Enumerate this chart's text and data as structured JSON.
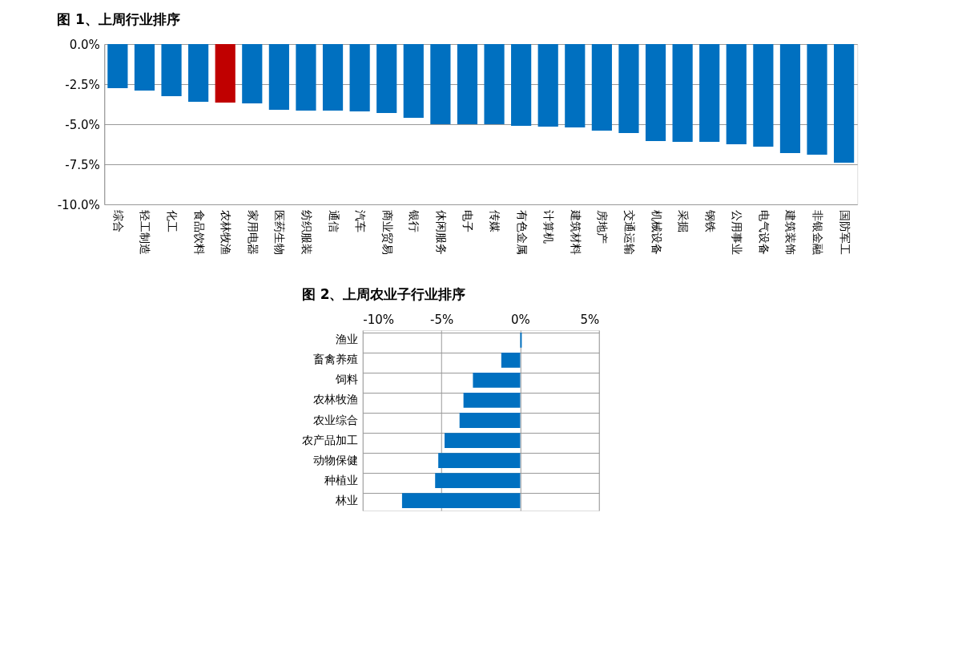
{
  "chart_data": [
    {
      "type": "bar",
      "title": "图 1、上周行业排序",
      "categories": [
        "综合",
        "轻工制造",
        "化工",
        "食品饮料",
        "农林牧渔",
        "家用电器",
        "医药生物",
        "纺织服装",
        "通信",
        "汽车",
        "商业贸易",
        "银行",
        "休闲服务",
        "电子",
        "传媒",
        "有色金属",
        "计算机",
        "建筑材料",
        "房地产",
        "交通运输",
        "机械设备",
        "采掘",
        "钢铁",
        "公用事业",
        "电气设备",
        "建筑装饰",
        "非银金融",
        "国防军工"
      ],
      "values": [
        -2.75,
        -2.9,
        -3.25,
        -3.6,
        -3.65,
        -3.7,
        -4.1,
        -4.15,
        -4.15,
        -4.2,
        -4.3,
        -4.6,
        -5.0,
        -5.0,
        -5.0,
        -5.1,
        -5.15,
        -5.2,
        -5.4,
        -5.55,
        -6.05,
        -6.1,
        -6.1,
        -6.25,
        -6.4,
        -6.8,
        -6.9,
        -7.4
      ],
      "colors": [
        "#0070c0",
        "#0070c0",
        "#0070c0",
        "#0070c0",
        "#c00000",
        "#0070c0",
        "#0070c0",
        "#0070c0",
        "#0070c0",
        "#0070c0",
        "#0070c0",
        "#0070c0",
        "#0070c0",
        "#0070c0",
        "#0070c0",
        "#0070c0",
        "#0070c0",
        "#0070c0",
        "#0070c0",
        "#0070c0",
        "#0070c0",
        "#0070c0",
        "#0070c0",
        "#0070c0",
        "#0070c0",
        "#0070c0",
        "#0070c0",
        "#0070c0"
      ],
      "ylim": [
        -10,
        0
      ],
      "yticks": [
        {
          "value": 0,
          "label": "0.0%"
        },
        {
          "value": -2.5,
          "label": "-2.5%"
        },
        {
          "value": -5,
          "label": "-5.0%"
        },
        {
          "value": -7.5,
          "label": "-7.5%"
        },
        {
          "value": -10,
          "label": "-10.0%"
        }
      ],
      "grid": "y"
    },
    {
      "type": "bar",
      "title": "图 2、上周农业子行业排序",
      "orientation": "horizontal",
      "categories": [
        "渔业",
        "畜禽养殖",
        "饲料",
        "农林牧渔",
        "农业综合",
        "农产品加工",
        "动物保健",
        "种植业",
        "林业"
      ],
      "values": [
        0.1,
        -1.2,
        -3.0,
        -3.6,
        -3.85,
        -4.8,
        -5.2,
        -5.4,
        -7.5
      ],
      "colors": [
        "#0070c0",
        "#0070c0",
        "#0070c0",
        "#0070c0",
        "#0070c0",
        "#0070c0",
        "#0070c0",
        "#0070c0",
        "#0070c0"
      ],
      "xlim": [
        -10,
        5
      ],
      "xticks": [
        {
          "value": -10,
          "label": "-10%"
        },
        {
          "value": -5,
          "label": "-5%"
        },
        {
          "value": 0,
          "label": "0%"
        },
        {
          "value": 5,
          "label": "5%"
        }
      ],
      "grid": true
    }
  ]
}
